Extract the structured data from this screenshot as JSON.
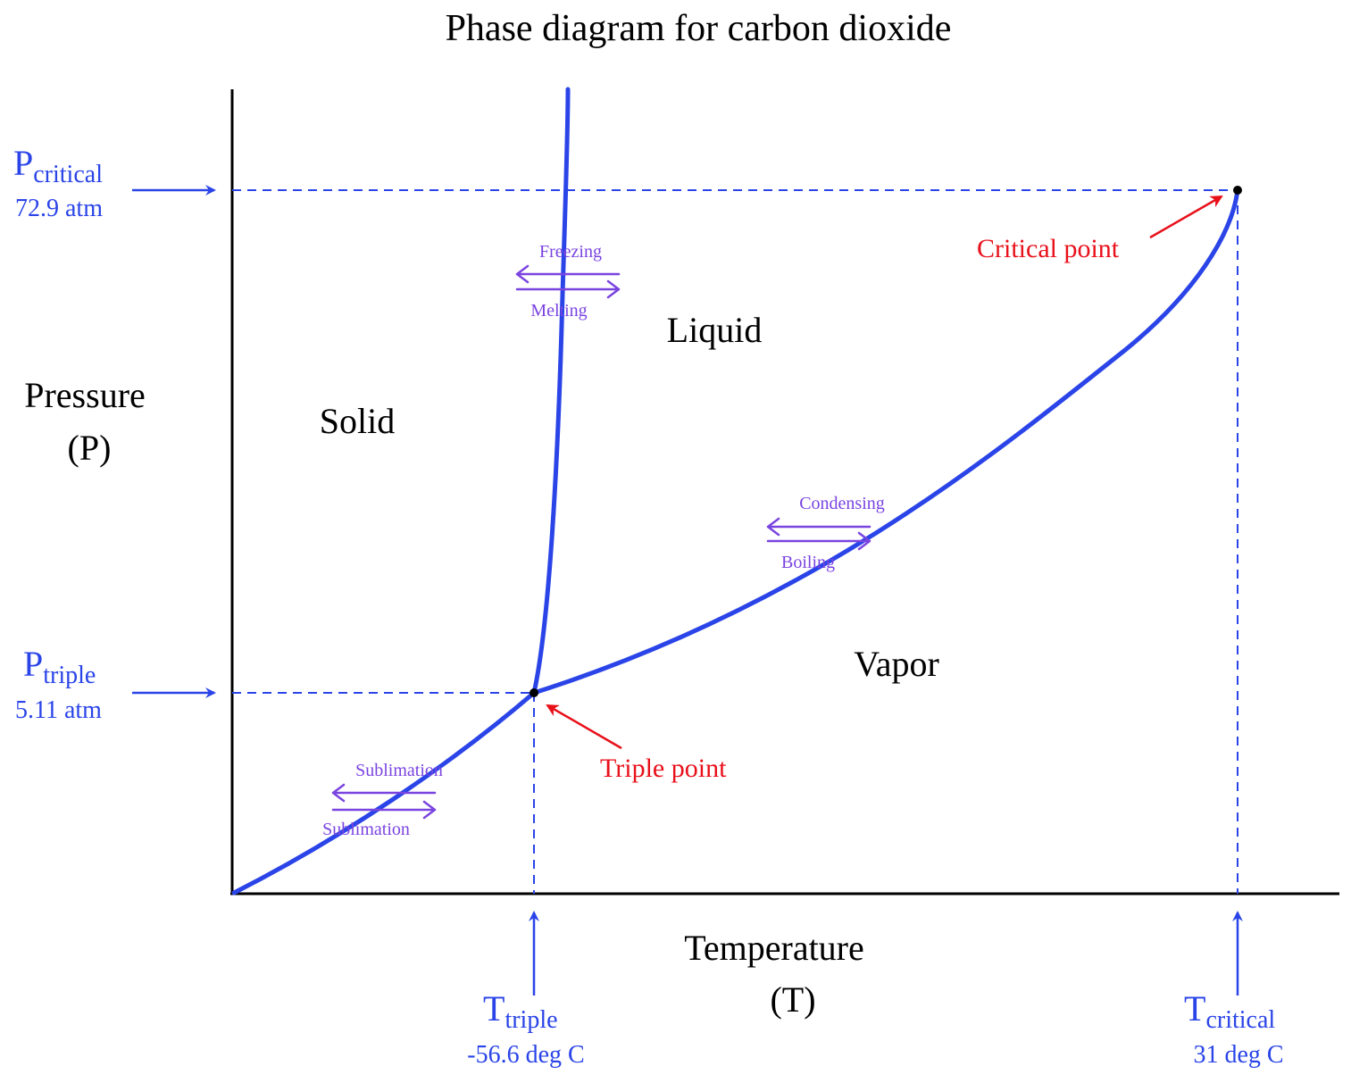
{
  "title": "Phase diagram for carbon dioxide",
  "axes": {
    "y_label_line1": "Pressure",
    "y_label_line2": "(P)",
    "x_label_line1": "Temperature",
    "x_label_line2": "(T)"
  },
  "regions": {
    "solid": "Solid",
    "liquid": "Liquid",
    "vapor": "Vapor"
  },
  "markers": {
    "p_critical": {
      "symbol": "P",
      "subscript": "critical",
      "value": "72.9 atm"
    },
    "p_triple": {
      "symbol": "P",
      "subscript": "triple",
      "value": "5.11 atm"
    },
    "t_triple": {
      "symbol": "T",
      "subscript": "triple",
      "value": "-56.6 deg C"
    },
    "t_critical": {
      "symbol": "T",
      "subscript": "critical",
      "value": "31 deg C"
    }
  },
  "points": {
    "critical_point": "Critical point",
    "triple_point": "Triple point"
  },
  "transitions": {
    "freezing": "Freezing",
    "melting": "Melting",
    "condensing": "Condensing",
    "boiling": "Boiling",
    "sublimation_top": "Sublimation",
    "sublimation_bottom": "Sublimation"
  },
  "colors": {
    "curve": "#2a44e8",
    "marker": "#2a44e8",
    "annotation": "#e8101a",
    "transition": "#7a44e0",
    "axis": "#000000"
  }
}
